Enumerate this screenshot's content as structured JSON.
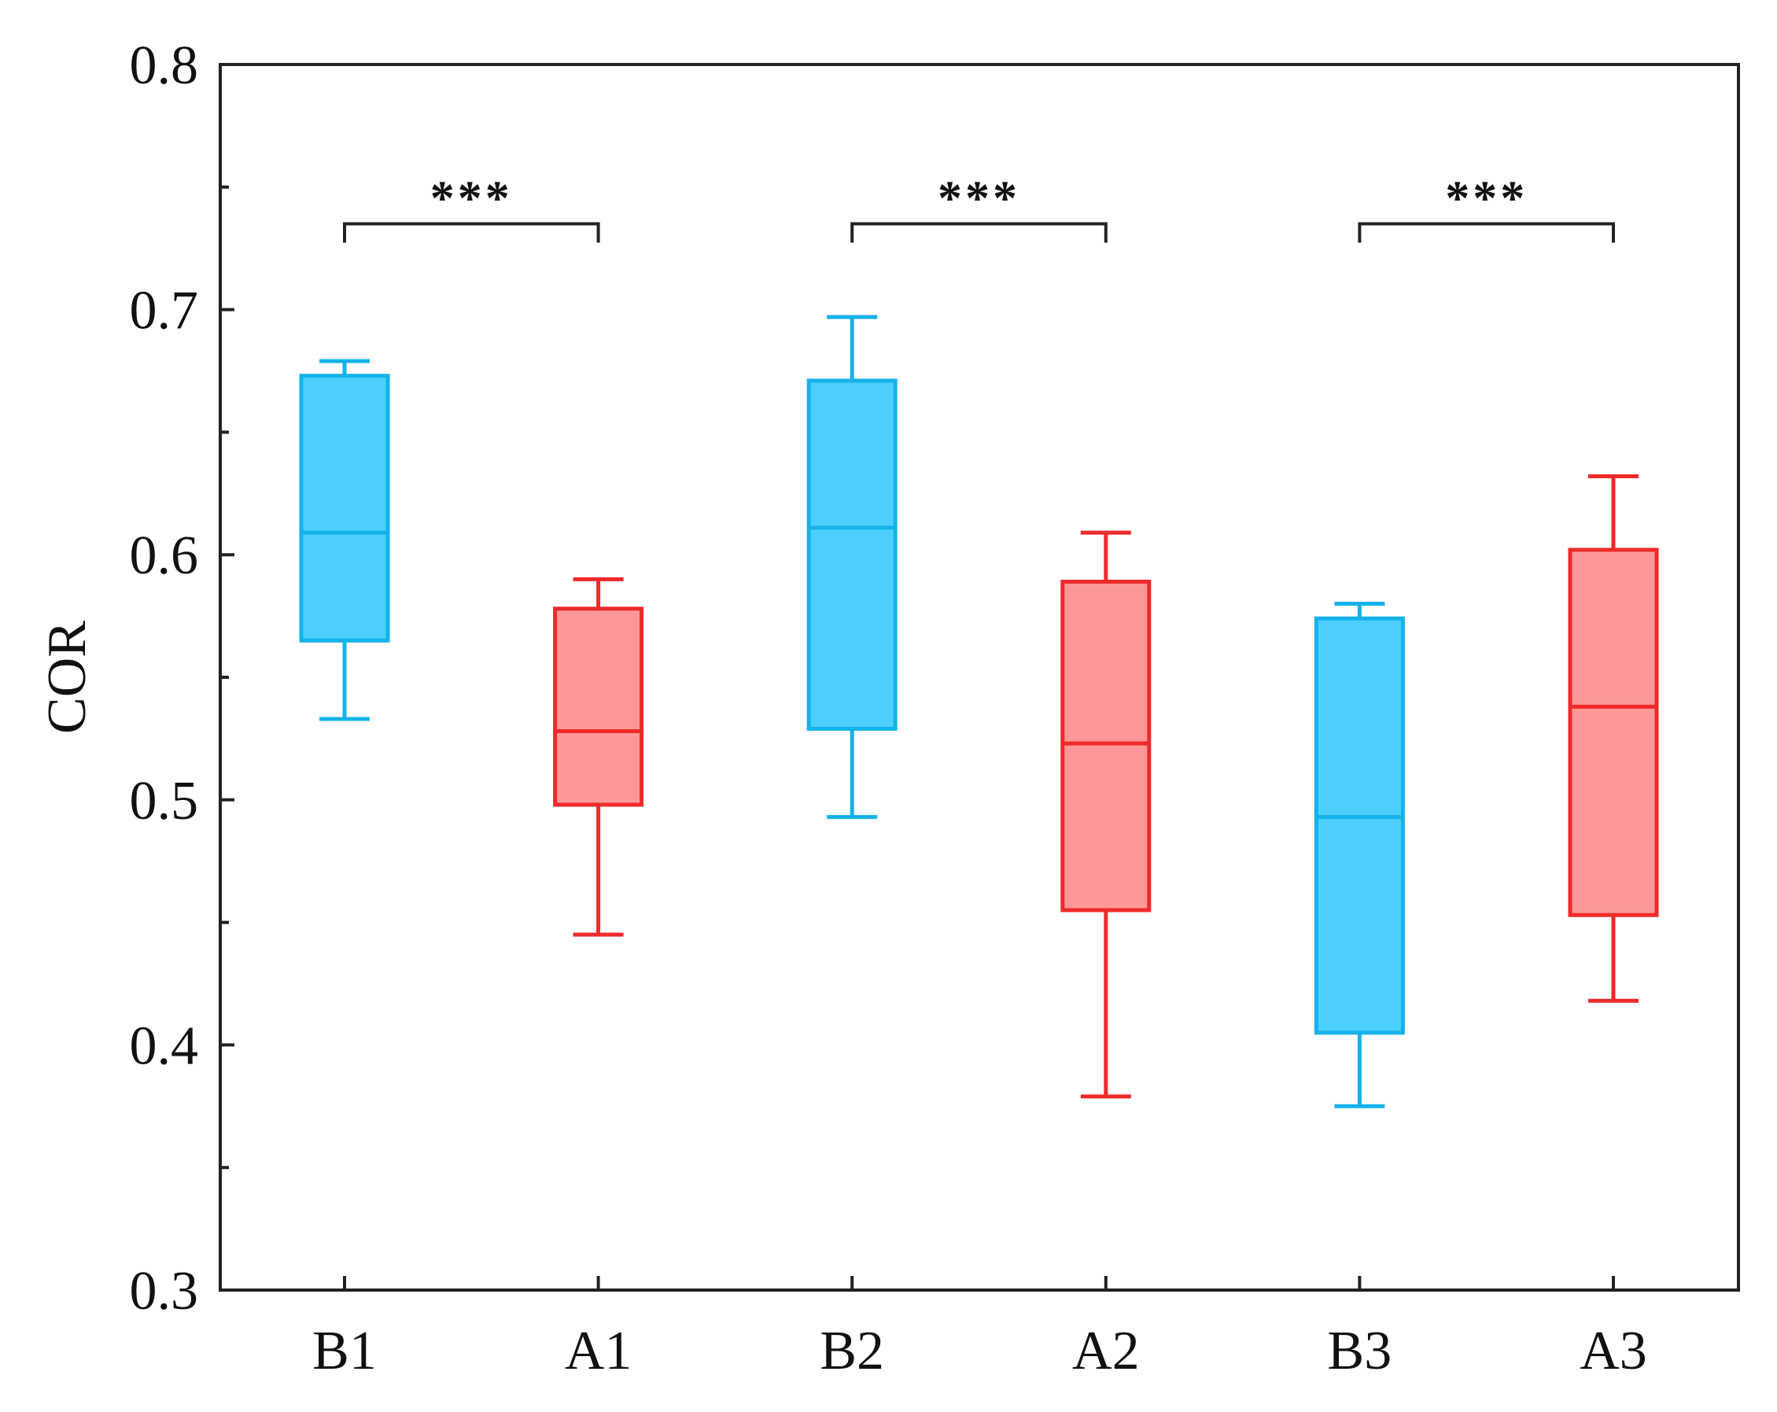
{
  "chart_data": {
    "type": "box",
    "title": "",
    "xlabel": "",
    "ylabel": "COR",
    "ylim": [
      0.3,
      0.8
    ],
    "yticks": [
      "0.3",
      "0.4",
      "0.5",
      "0.6",
      "0.7",
      "0.8"
    ],
    "ytick_values": [
      0.3,
      0.4,
      0.5,
      0.6,
      0.7,
      0.8
    ],
    "minor_tick_step": 0.05,
    "grid": false,
    "categories": [
      "B1",
      "A1",
      "B2",
      "A2",
      "B3",
      "A3"
    ],
    "boxes": [
      {
        "label": "B1",
        "whisker_low": 0.533,
        "q1": 0.565,
        "median": 0.609,
        "q3": 0.673,
        "whisker_high": 0.679,
        "series": "B"
      },
      {
        "label": "A1",
        "whisker_low": 0.445,
        "q1": 0.498,
        "median": 0.528,
        "q3": 0.578,
        "whisker_high": 0.59,
        "series": "A"
      },
      {
        "label": "B2",
        "whisker_low": 0.493,
        "q1": 0.529,
        "median": 0.611,
        "q3": 0.671,
        "whisker_high": 0.697,
        "series": "B"
      },
      {
        "label": "A2",
        "whisker_low": 0.379,
        "q1": 0.455,
        "median": 0.523,
        "q3": 0.589,
        "whisker_high": 0.609,
        "series": "A"
      },
      {
        "label": "B3",
        "whisker_low": 0.375,
        "q1": 0.405,
        "median": 0.493,
        "q3": 0.574,
        "whisker_high": 0.58,
        "series": "B"
      },
      {
        "label": "A3",
        "whisker_low": 0.418,
        "q1": 0.453,
        "median": 0.538,
        "q3": 0.602,
        "whisker_high": 0.632,
        "series": "A"
      }
    ],
    "series_colors": {
      "B": {
        "stroke": "#14b2ea",
        "fill": "#4dcffd"
      },
      "A": {
        "stroke": "#ee2a2a",
        "fill": "#fd9898"
      }
    },
    "annotations": [
      {
        "from": "B1",
        "to": "A1",
        "text": "***",
        "y": 0.735
      },
      {
        "from": "B2",
        "to": "A2",
        "text": "***",
        "y": 0.735
      },
      {
        "from": "B3",
        "to": "A3",
        "text": "***",
        "y": 0.735
      }
    ]
  }
}
